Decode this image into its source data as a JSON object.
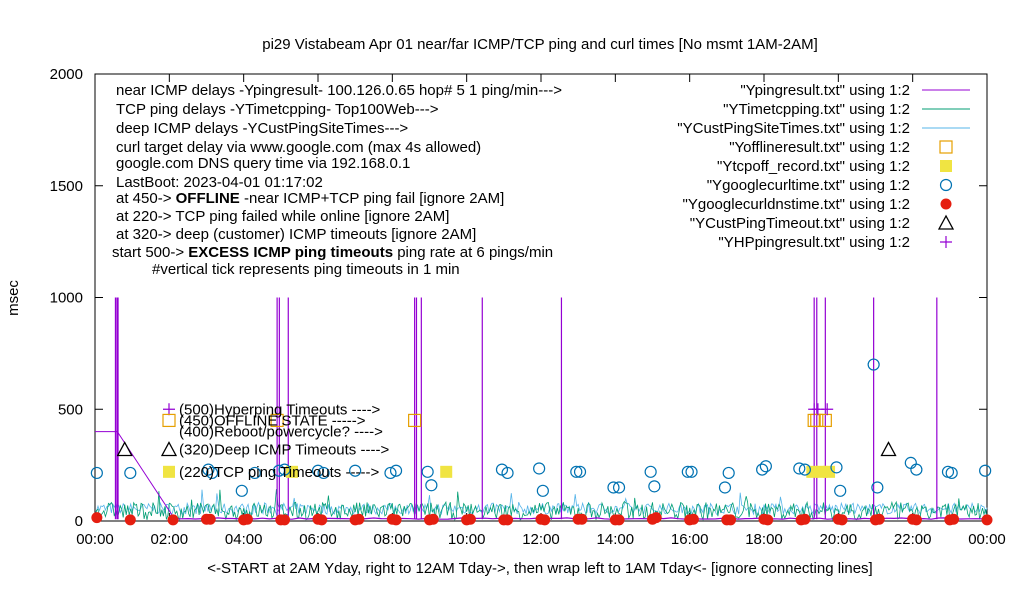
{
  "chart_data": {
    "type": "line",
    "title": "pi29 Vistabeam Apr 01  near/far ICMP/TCP ping and curl times [No msmt 1AM-2AM]",
    "ylabel": "msec",
    "xlabel": "<-START at 2AM Yday, right to 12AM Tday->, then wrap left to 1AM Tday<- [ignore connecting lines]",
    "ylim": [
      0,
      2000
    ],
    "xlim": [
      0,
      24
    ],
    "grid": false,
    "legend_position": "top-right",
    "y_ticks": [
      0,
      500,
      1000,
      1500,
      2000
    ],
    "y_tick_labels": [
      "0",
      "500",
      "1000",
      "1500",
      "2000"
    ],
    "x_ticks": [
      0,
      2,
      4,
      6,
      8,
      10,
      12,
      14,
      16,
      18,
      20,
      22,
      24
    ],
    "x_tick_labels": [
      "00:00",
      "02:00",
      "04:00",
      "06:00",
      "08:00",
      "10:00",
      "12:00",
      "14:00",
      "16:00",
      "18:00",
      "20:00",
      "22:00",
      "00:00"
    ],
    "notes": [
      {
        "text": "near ICMP delays -Ypingresult- 100.126.0.65 hop# 5 1 ping/min--->",
        "bold": false
      },
      {
        "text": "TCP ping delays -YTimetcpping- Top100Web--->",
        "bold": false
      },
      {
        "text": "deep ICMP delays -YCustPingSiteTimes--->",
        "bold": false
      },
      {
        "text": "curl target delay via www.google.com (max 4s allowed)",
        "bold": false
      },
      {
        "text": "google.com DNS query time via 192.168.0.1",
        "bold": false
      },
      {
        "text": "LastBoot: 2023-04-01 01:17:02",
        "bold": false
      }
    ],
    "note_offline": {
      "pre": "at 450-> ",
      "bold": "OFFLINE",
      "post": " -near ICMP+TCP ping fail [ignore 2AM]"
    },
    "note_tcpfail": "at 220-> TCP ping failed while online [ignore 2AM]",
    "note_deep": "at 320-> deep (customer) ICMP timeouts [ignore 2AM]",
    "note_excess": {
      "pre": "start 500-> ",
      "bold": "EXCESS ICMP ping timeouts",
      "post": " ping rate at 6 pings/min"
    },
    "note_tick": "#vertical tick represents ping timeouts in 1 min",
    "level_labels": [
      {
        "text": "(500)Hyperping Timeouts ---->",
        "y": 500,
        "series": "YHPpingresult.txt"
      },
      {
        "text": "(450)OFFLINE STATE ----->",
        "y": 450,
        "series": "Yofflineresult.txt"
      },
      {
        "text": "(400)Reboot/powercycle? ---->",
        "y": 400,
        "series": ""
      },
      {
        "text": "(320)Deep ICMP Timeouts ---->",
        "y": 320,
        "series": "YCustPingTimeout.txt"
      },
      {
        "text": "(220)TCP ping Timeouts ----->",
        "y": 220,
        "series": "Ytcpoff_record.txt"
      }
    ],
    "series": [
      {
        "name": "\"Ypingresult.txt\" using 1:2",
        "style": "line",
        "color": "#9400d3",
        "baseline": 8,
        "spikes": [
          {
            "x": 0.55,
            "y": 1000
          },
          {
            "x": 0.59,
            "y": 1000
          },
          {
            "x": 0.62,
            "y": 1000
          },
          {
            "x": 4.9,
            "y": 1000
          },
          {
            "x": 4.96,
            "y": 1000
          },
          {
            "x": 5.2,
            "y": 1000
          },
          {
            "x": 8.6,
            "y": 1000
          },
          {
            "x": 8.65,
            "y": 1000
          },
          {
            "x": 8.78,
            "y": 1000
          },
          {
            "x": 10.42,
            "y": 1000
          },
          {
            "x": 12.55,
            "y": 1000
          },
          {
            "x": 19.35,
            "y": 1000
          },
          {
            "x": 19.42,
            "y": 1000
          },
          {
            "x": 19.65,
            "y": 1000
          },
          {
            "x": 20.95,
            "y": 1000
          },
          {
            "x": 22.65,
            "y": 1000
          }
        ],
        "wrap_line": [
          [
            0,
            400
          ],
          [
            0.6,
            400
          ],
          [
            2.1,
            20
          ]
        ]
      },
      {
        "name": "\"YTimetcpping.txt\" using 1:2",
        "style": "line",
        "color": "#009e73",
        "baseline": 45,
        "noise": 40
      },
      {
        "name": "\"YCustPingSiteTimes.txt\" using 1:2",
        "style": "line",
        "color": "#56b4e9",
        "baseline": 55,
        "noise": 25
      },
      {
        "name": "\"Yofflineresult.txt\" using 1:2",
        "style": "open-square",
        "color": "#e69f00",
        "points": [
          [
            19.35,
            450
          ],
          [
            19.42,
            450
          ],
          [
            19.65,
            450
          ],
          [
            8.6,
            450
          ],
          [
            4.9,
            450
          ]
        ]
      },
      {
        "name": "\"Ytcpoff_record.txt\" using 1:2",
        "style": "filled-square",
        "color": "#f0e442",
        "points": [
          [
            5.3,
            220
          ],
          [
            9.45,
            220
          ],
          [
            19.3,
            220
          ],
          [
            19.55,
            220
          ],
          [
            19.75,
            220
          ]
        ]
      },
      {
        "name": "\"Ygooglecurltime.txt\" using 1:2",
        "style": "open-circle",
        "color": "#0072b2",
        "points": [
          [
            0.05,
            215
          ],
          [
            0.95,
            215
          ],
          [
            3.05,
            230
          ],
          [
            3.15,
            215
          ],
          [
            3.95,
            135
          ],
          [
            4.3,
            215
          ],
          [
            4.95,
            225
          ],
          [
            5.1,
            230
          ],
          [
            6.0,
            225
          ],
          [
            6.15,
            215
          ],
          [
            7.0,
            225
          ],
          [
            7.95,
            215
          ],
          [
            8.1,
            225
          ],
          [
            8.95,
            220
          ],
          [
            9.05,
            160
          ],
          [
            10.95,
            230
          ],
          [
            11.1,
            215
          ],
          [
            11.95,
            235
          ],
          [
            12.05,
            135
          ],
          [
            12.95,
            220
          ],
          [
            13.05,
            220
          ],
          [
            13.95,
            150
          ],
          [
            14.1,
            150
          ],
          [
            14.95,
            220
          ],
          [
            15.05,
            155
          ],
          [
            15.95,
            220
          ],
          [
            16.05,
            220
          ],
          [
            16.95,
            150
          ],
          [
            17.05,
            215
          ],
          [
            17.95,
            230
          ],
          [
            18.05,
            245
          ],
          [
            18.95,
            235
          ],
          [
            19.1,
            230
          ],
          [
            19.95,
            240
          ],
          [
            20.05,
            135
          ],
          [
            20.95,
            700
          ],
          [
            21.05,
            150
          ],
          [
            21.95,
            260
          ],
          [
            22.1,
            230
          ],
          [
            22.95,
            220
          ],
          [
            23.05,
            215
          ],
          [
            23.95,
            225
          ]
        ]
      },
      {
        "name": "\"Ygooglecurldnstime.txt\" using 1:2",
        "style": "filled-circle",
        "color": "#e51e10",
        "points": [
          [
            0.05,
            15
          ],
          [
            0.95,
            5
          ],
          [
            2.1,
            5
          ],
          [
            3.0,
            8
          ],
          [
            3.1,
            8
          ],
          [
            4.0,
            5
          ],
          [
            4.1,
            8
          ],
          [
            5.0,
            5
          ],
          [
            5.1,
            5
          ],
          [
            6.0,
            8
          ],
          [
            6.1,
            5
          ],
          [
            7.0,
            5
          ],
          [
            7.1,
            8
          ],
          [
            8.0,
            8
          ],
          [
            8.1,
            5
          ],
          [
            9.0,
            5
          ],
          [
            9.1,
            8
          ],
          [
            10.0,
            5
          ],
          [
            10.1,
            8
          ],
          [
            11.0,
            5
          ],
          [
            11.1,
            5
          ],
          [
            12.0,
            8
          ],
          [
            12.1,
            5
          ],
          [
            13.0,
            8
          ],
          [
            13.1,
            8
          ],
          [
            14.0,
            5
          ],
          [
            14.1,
            5
          ],
          [
            15.0,
            8
          ],
          [
            15.1,
            15
          ],
          [
            16.0,
            5
          ],
          [
            16.1,
            8
          ],
          [
            17.0,
            5
          ],
          [
            17.1,
            5
          ],
          [
            18.0,
            8
          ],
          [
            18.1,
            5
          ],
          [
            19.0,
            5
          ],
          [
            19.1,
            8
          ],
          [
            20.0,
            8
          ],
          [
            20.1,
            5
          ],
          [
            21.0,
            5
          ],
          [
            21.1,
            8
          ],
          [
            22.0,
            8
          ],
          [
            22.1,
            5
          ],
          [
            23.0,
            5
          ],
          [
            23.1,
            8
          ],
          [
            24.0,
            5
          ]
        ]
      },
      {
        "name": "\"YCustPingTimeout.txt\" using 1:2",
        "style": "open-triangle",
        "color": "#000000",
        "points": [
          [
            0.8,
            320
          ],
          [
            21.35,
            320
          ]
        ]
      },
      {
        "name": "\"YHPpingresult.txt\" using 1:2",
        "style": "plus",
        "color": "#9400d3",
        "points": [
          [
            19.35,
            500
          ],
          [
            19.45,
            500
          ],
          [
            19.7,
            500
          ]
        ]
      }
    ]
  }
}
